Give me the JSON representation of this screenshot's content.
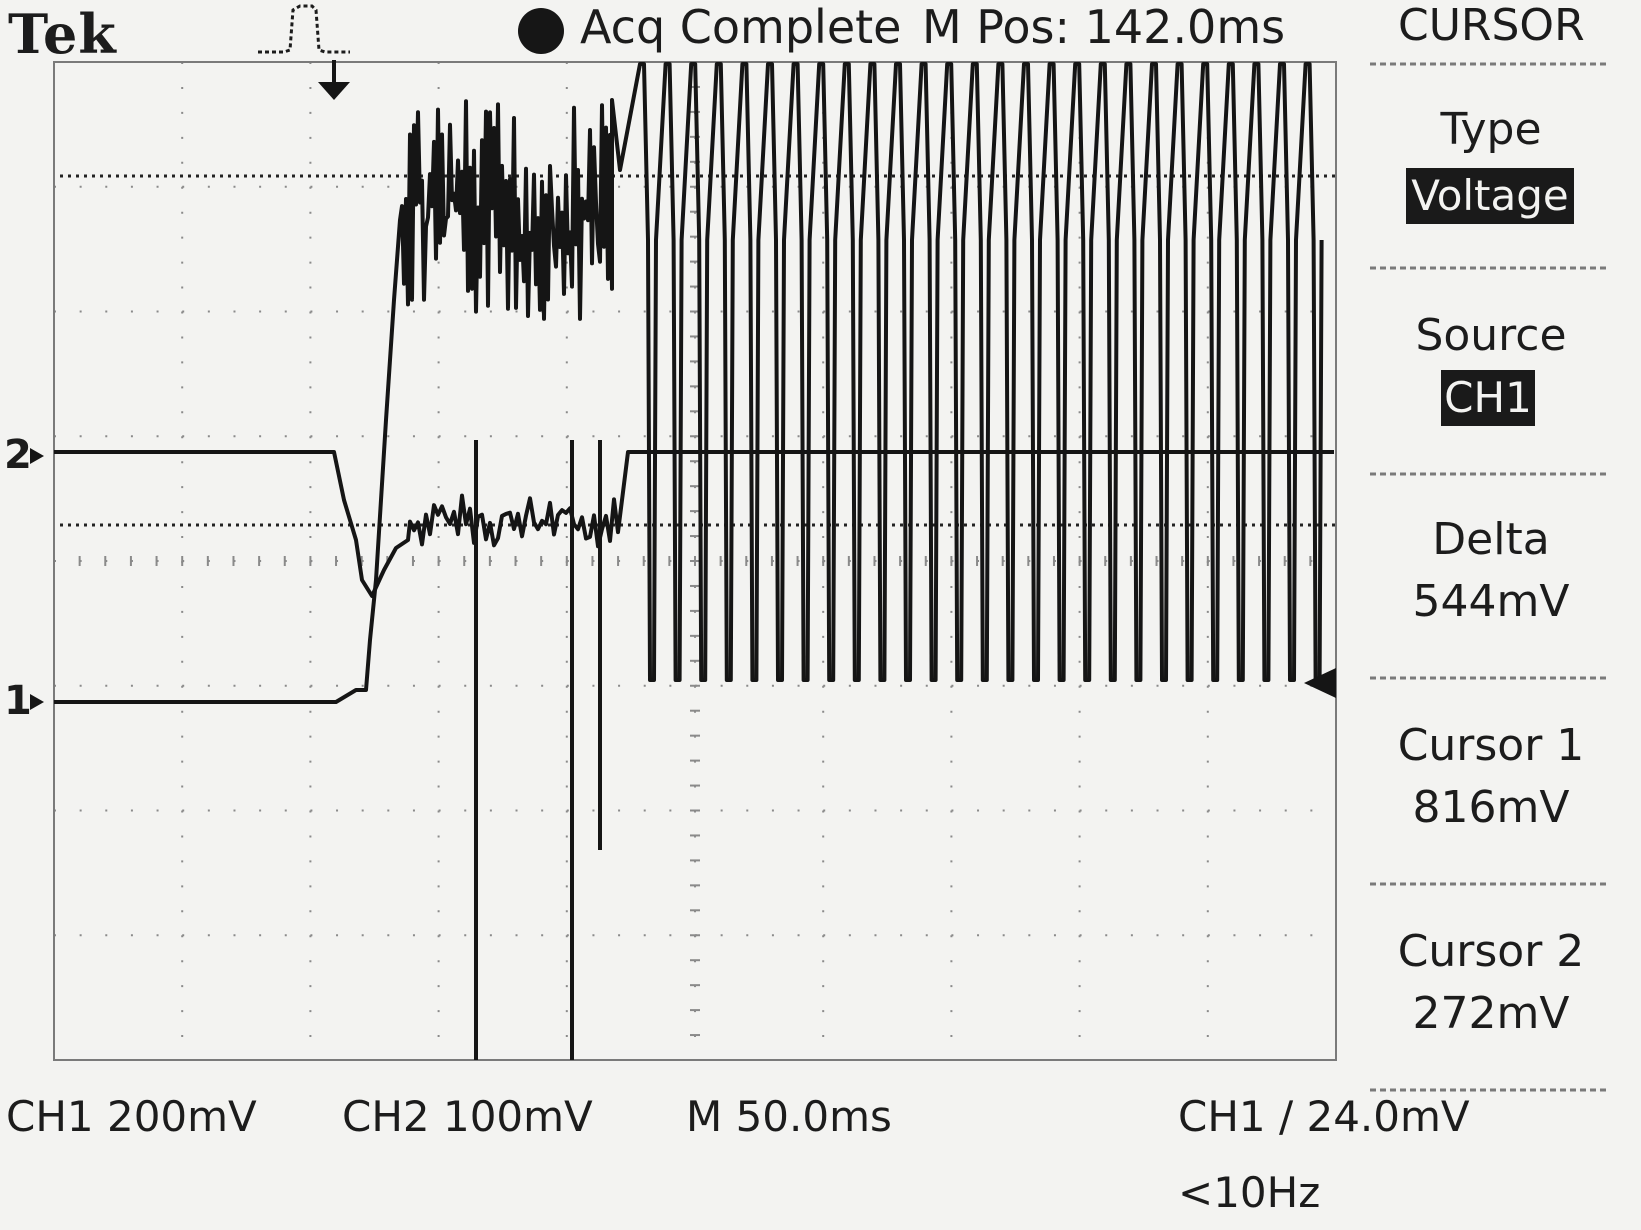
{
  "header": {
    "brand": "Tek",
    "trigger_icon": "pulse-trigger-icon",
    "acq_status": "Acq Complete",
    "m_pos": "M Pos: 142.0ms"
  },
  "side_menu": {
    "title": "CURSOR",
    "type": {
      "label": "Type",
      "value": "Voltage"
    },
    "source": {
      "label": "Source",
      "value": "CH1"
    },
    "delta": {
      "label": "Delta",
      "value": "544mV"
    },
    "cursor1": {
      "label": "Cursor 1",
      "value": "816mV"
    },
    "cursor2": {
      "label": "Cursor 2",
      "value": "272mV"
    }
  },
  "channel_markers": {
    "ch1": "1",
    "ch2": "2"
  },
  "status_bar": {
    "ch1_scale": "CH1  200mV",
    "ch2_scale": "CH2  100mV",
    "timebase": "M 50.0ms",
    "trigger": "CH1 ∕ 24.0mV",
    "trigger_freq": "<10Hz"
  },
  "colors": {
    "screen_bg": "#f3f3f1",
    "trace": "#151515",
    "grid": "#8a8a8a"
  }
}
